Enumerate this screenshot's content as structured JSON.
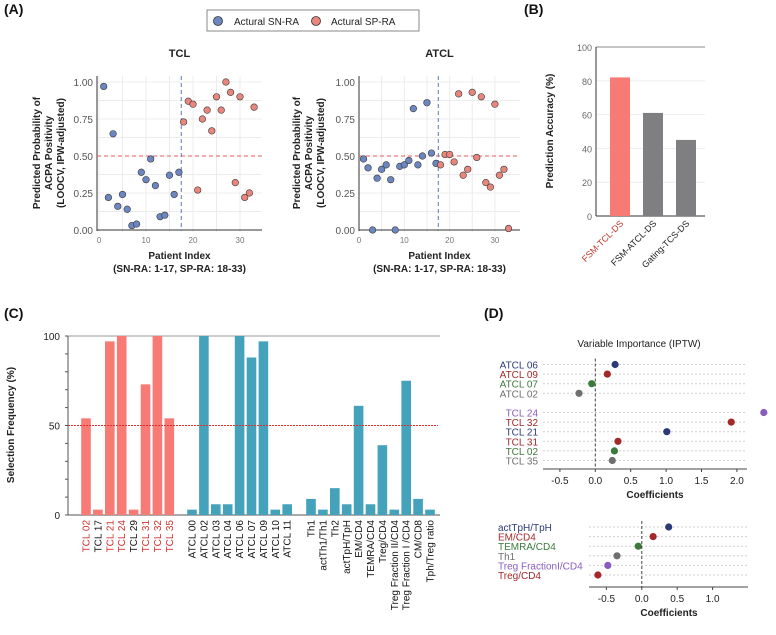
{
  "panel_labels": [
    "(A)",
    "(B)",
    "(C)",
    "(D)"
  ],
  "legend": [
    {
      "label": "Actural SN-RA",
      "color": "#6b86c0"
    },
    {
      "label": "Actural SP-RA",
      "color": "#e8857c"
    }
  ],
  "chart_data": [
    {
      "type": "scatter",
      "title": "TCL",
      "xlabel": "Patient Index",
      "xlabel_sub": "(SN-RA: 1-17, SP-RA: 18-33)",
      "ylabel": [
        "Predicted Probability of",
        "ACPA Positivity",
        "(LOOCV, IPW-adjusted)"
      ],
      "xticks": [
        "0",
        "10",
        "20",
        "30"
      ],
      "yticks": [
        "0.00",
        "0.25",
        "0.50",
        "0.75",
        "1.00"
      ],
      "xlim": [
        0,
        34
      ],
      "ylim": [
        0,
        1
      ],
      "hline": 0.5,
      "vline": 17.5,
      "grid": true,
      "series": [
        {
          "legend_index": 0,
          "x": [
            1,
            2,
            3,
            4,
            5,
            6,
            7,
            8,
            9,
            10,
            11,
            12,
            13,
            14,
            15,
            16,
            17
          ],
          "y": [
            0.97,
            0.22,
            0.65,
            0.16,
            0.24,
            0.14,
            0.03,
            0.04,
            0.39,
            0.34,
            0.48,
            0.3,
            0.09,
            0.1,
            0.37,
            0.24,
            0.39
          ]
        },
        {
          "legend_index": 1,
          "x": [
            18,
            19,
            20,
            21,
            22,
            23,
            24,
            25,
            26,
            27,
            28,
            29,
            30,
            31,
            32,
            33
          ],
          "y": [
            0.73,
            0.87,
            0.85,
            0.27,
            0.75,
            0.81,
            0.67,
            0.9,
            0.81,
            1.0,
            0.93,
            0.32,
            0.9,
            0.22,
            0.25,
            0.83
          ]
        }
      ]
    },
    {
      "type": "scatter",
      "title": "ATCL",
      "xlabel": "Patient Index",
      "xlabel_sub": "(SN-RA: 1-17, SP-RA: 18-33)",
      "ylabel": [
        "Predicted Probability of",
        "ACPA Positivity",
        "(LOOCV, IPW-adjusted)"
      ],
      "xticks": [
        "0",
        "10",
        "20",
        "30"
      ],
      "yticks": [
        "0.00",
        "0.25",
        "0.50",
        "0.75",
        "1.00"
      ],
      "xlim": [
        0,
        34
      ],
      "ylim": [
        0,
        1
      ],
      "hline": 0.5,
      "vline": 17.5,
      "grid": true,
      "series": [
        {
          "legend_index": 0,
          "x": [
            1,
            2,
            3,
            4,
            5,
            6,
            7,
            8,
            9,
            10,
            11,
            12,
            13,
            14,
            15,
            16,
            17
          ],
          "y": [
            0.48,
            0.42,
            0.0,
            0.35,
            0.41,
            0.44,
            0.34,
            0.0,
            0.43,
            0.44,
            0.47,
            0.82,
            0.44,
            0.5,
            0.86,
            0.52,
            0.45
          ]
        },
        {
          "legend_index": 1,
          "x": [
            18,
            19,
            20,
            21,
            22,
            23,
            24,
            25,
            26,
            27,
            28,
            29,
            30,
            31,
            32,
            33
          ],
          "y": [
            0.44,
            0.51,
            0.51,
            0.46,
            0.92,
            0.37,
            0.41,
            0.93,
            0.49,
            0.9,
            0.32,
            0.29,
            0.85,
            0.37,
            0.41,
            0.01
          ]
        }
      ]
    },
    {
      "type": "bar",
      "ylabel": "Prediction Accuracy (%)",
      "categories": [
        "FSM-TCL-DS",
        "FSM-ATCL-DS",
        "Gating-TCS-DS"
      ],
      "values": [
        82,
        61,
        45
      ],
      "bar_colors": [
        "#f87a74",
        "#7f7f82",
        "#7f7f82"
      ],
      "label_colors": [
        "#c0392b",
        "#222222",
        "#222222"
      ],
      "yticks": [
        "0",
        "20",
        "40",
        "60",
        "80",
        "100"
      ],
      "ylim": [
        0,
        100
      ],
      "grid": true
    },
    {
      "type": "bar",
      "ylabel": "Selection Frequency (%)",
      "yticks": [
        "0",
        "50",
        "100"
      ],
      "ylim": [
        0,
        100
      ],
      "hline": 50,
      "groups": [
        {
          "color": "#f87a74",
          "categories": [
            "TCL 02",
            "TCL 17",
            "TCL 21",
            "TCL 24",
            "TCL 29",
            "TCL 31",
            "TCL 32",
            "TCL 35"
          ],
          "values": [
            54,
            3,
            97,
            100,
            3,
            73,
            100,
            54
          ],
          "label_colors": [
            "#d0312d",
            "#111111",
            "#d0312d",
            "#d0312d",
            "#111111",
            "#d0312d",
            "#d0312d",
            "#d0312d"
          ]
        },
        {
          "color": "#44a3bb",
          "categories": [
            "ATCL 00",
            "ATCL 02",
            "ATCL 03",
            "ATCL 04",
            "ATCL 06",
            "ATCL 07",
            "ATCL 09",
            "ATCL 10",
            "ATCL 11"
          ],
          "values": [
            3,
            100,
            6,
            6,
            100,
            88,
            97,
            3,
            6
          ]
        },
        {
          "color": "#44a3bb",
          "categories": [
            "Th1",
            "actTh1/Th1",
            "Th2",
            "actTpH/TpH",
            "EM/CD4",
            "TEMRA/CD4",
            "Treg/CD4",
            "Treg Fraction II/CD4",
            "Treg Fraction I /CD4",
            "CM/CD8",
            "Tph/Treg ratio"
          ],
          "values": [
            9,
            3,
            15,
            6,
            61,
            6,
            39,
            3,
            75,
            9,
            3
          ]
        }
      ]
    },
    {
      "type": "scatter",
      "title": "Variable Importance (IPTW)",
      "xlabel": "Coefficients",
      "xticks": [
        "-0.5",
        "0.0",
        "0.5",
        "1.0",
        "1.5",
        "2.0"
      ],
      "xlim": [
        -0.72,
        2.45
      ],
      "vline": 0,
      "groups": [
        {
          "categories": [
            "ATCL 06",
            "ATCL 09",
            "ATCL 07",
            "ATCL 02"
          ],
          "values": [
            0.28,
            0.17,
            -0.05,
            -0.23
          ],
          "colors": [
            "#2d3a78",
            "#a3282a",
            "#3b7a3b",
            "#6f6f6f"
          ]
        },
        {
          "categories": [
            "TCL 24",
            "TCL 32",
            "TCL 21",
            "TCL 31",
            "TCL 02",
            "TCL 35"
          ],
          "values": [
            2.38,
            1.92,
            1.01,
            0.32,
            0.27,
            0.24
          ],
          "colors": [
            "#8a5cc0",
            "#a3282a",
            "#2d3a78",
            "#a3282a",
            "#3b7a3b",
            "#6f6f6f"
          ]
        }
      ]
    },
    {
      "type": "scatter",
      "xlabel": "Coefficients",
      "xticks": [
        "-0.5",
        "0.0",
        "0.5",
        "1.0"
      ],
      "xlim": [
        -0.75,
        1.5
      ],
      "vline": 0,
      "groups": [
        {
          "categories": [
            "actTpH/TpH",
            "EM/CD4",
            "TEMRA/CD4",
            "Th1",
            "Treg FractionI/CD4",
            "Treg/CD4"
          ],
          "values": [
            0.38,
            0.16,
            -0.05,
            -0.35,
            -0.48,
            -0.62
          ],
          "colors": [
            "#2d3a78",
            "#a3282a",
            "#3b7a3b",
            "#6f6f6f",
            "#8a5cc0",
            "#a3282a"
          ]
        }
      ]
    }
  ]
}
